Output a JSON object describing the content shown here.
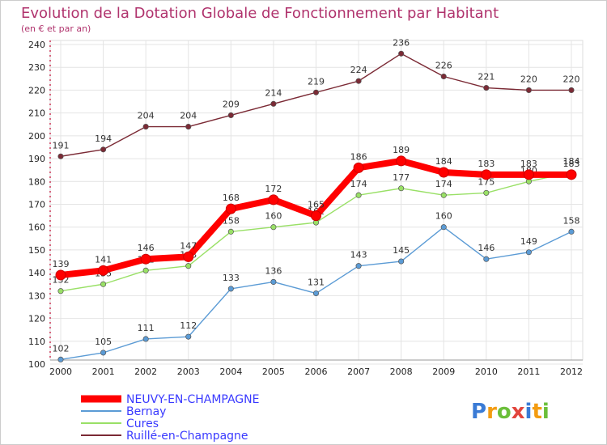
{
  "chart_data": {
    "type": "line",
    "title": "Evolution de la Dotation Globale de Fonctionnement par Habitant",
    "subtitle": "(en € et par an)",
    "x": [
      "2000",
      "2001",
      "2002",
      "2003",
      "2004",
      "2005",
      "2006",
      "2007",
      "2008",
      "2009",
      "2010",
      "2011",
      "2012"
    ],
    "ylim": [
      100,
      240
    ],
    "yticks": [
      100,
      110,
      120,
      130,
      140,
      150,
      160,
      170,
      180,
      190,
      200,
      210,
      220,
      230,
      240
    ],
    "grid": true,
    "legend_position": "bottom-left",
    "series": [
      {
        "name": "Ruillé-en-Champagne",
        "color": "#7b2a35",
        "values": [
          191,
          194,
          204,
          204,
          209,
          214,
          219,
          224,
          236,
          226,
          221,
          220,
          220
        ]
      },
      {
        "name": "Bernay",
        "color": "#5b9bd5",
        "values": [
          102,
          105,
          111,
          112,
          133,
          136,
          131,
          143,
          145,
          160,
          146,
          149,
          158
        ]
      },
      {
        "name": "Cures",
        "color": "#99e066",
        "values": [
          132,
          135,
          141,
          143,
          158,
          160,
          162,
          174,
          177,
          174,
          175,
          180,
          184
        ]
      },
      {
        "name": "NEUVY-EN-CHAMPAGNE",
        "color": "#ff0000",
        "values": [
          139,
          141,
          146,
          147,
          168,
          172,
          165,
          186,
          189,
          184,
          183,
          183,
          183
        ]
      }
    ]
  },
  "legend": {
    "items": [
      {
        "label": "NEUVY-EN-CHAMPAGNE",
        "color": "#ff0000"
      },
      {
        "label": "Bernay",
        "color": "#5b9bd5"
      },
      {
        "label": "Cures",
        "color": "#99e066"
      },
      {
        "label": "Ruillé-en-Champagne",
        "color": "#7b2a35"
      }
    ]
  },
  "logo": {
    "text": "Proxiti"
  }
}
